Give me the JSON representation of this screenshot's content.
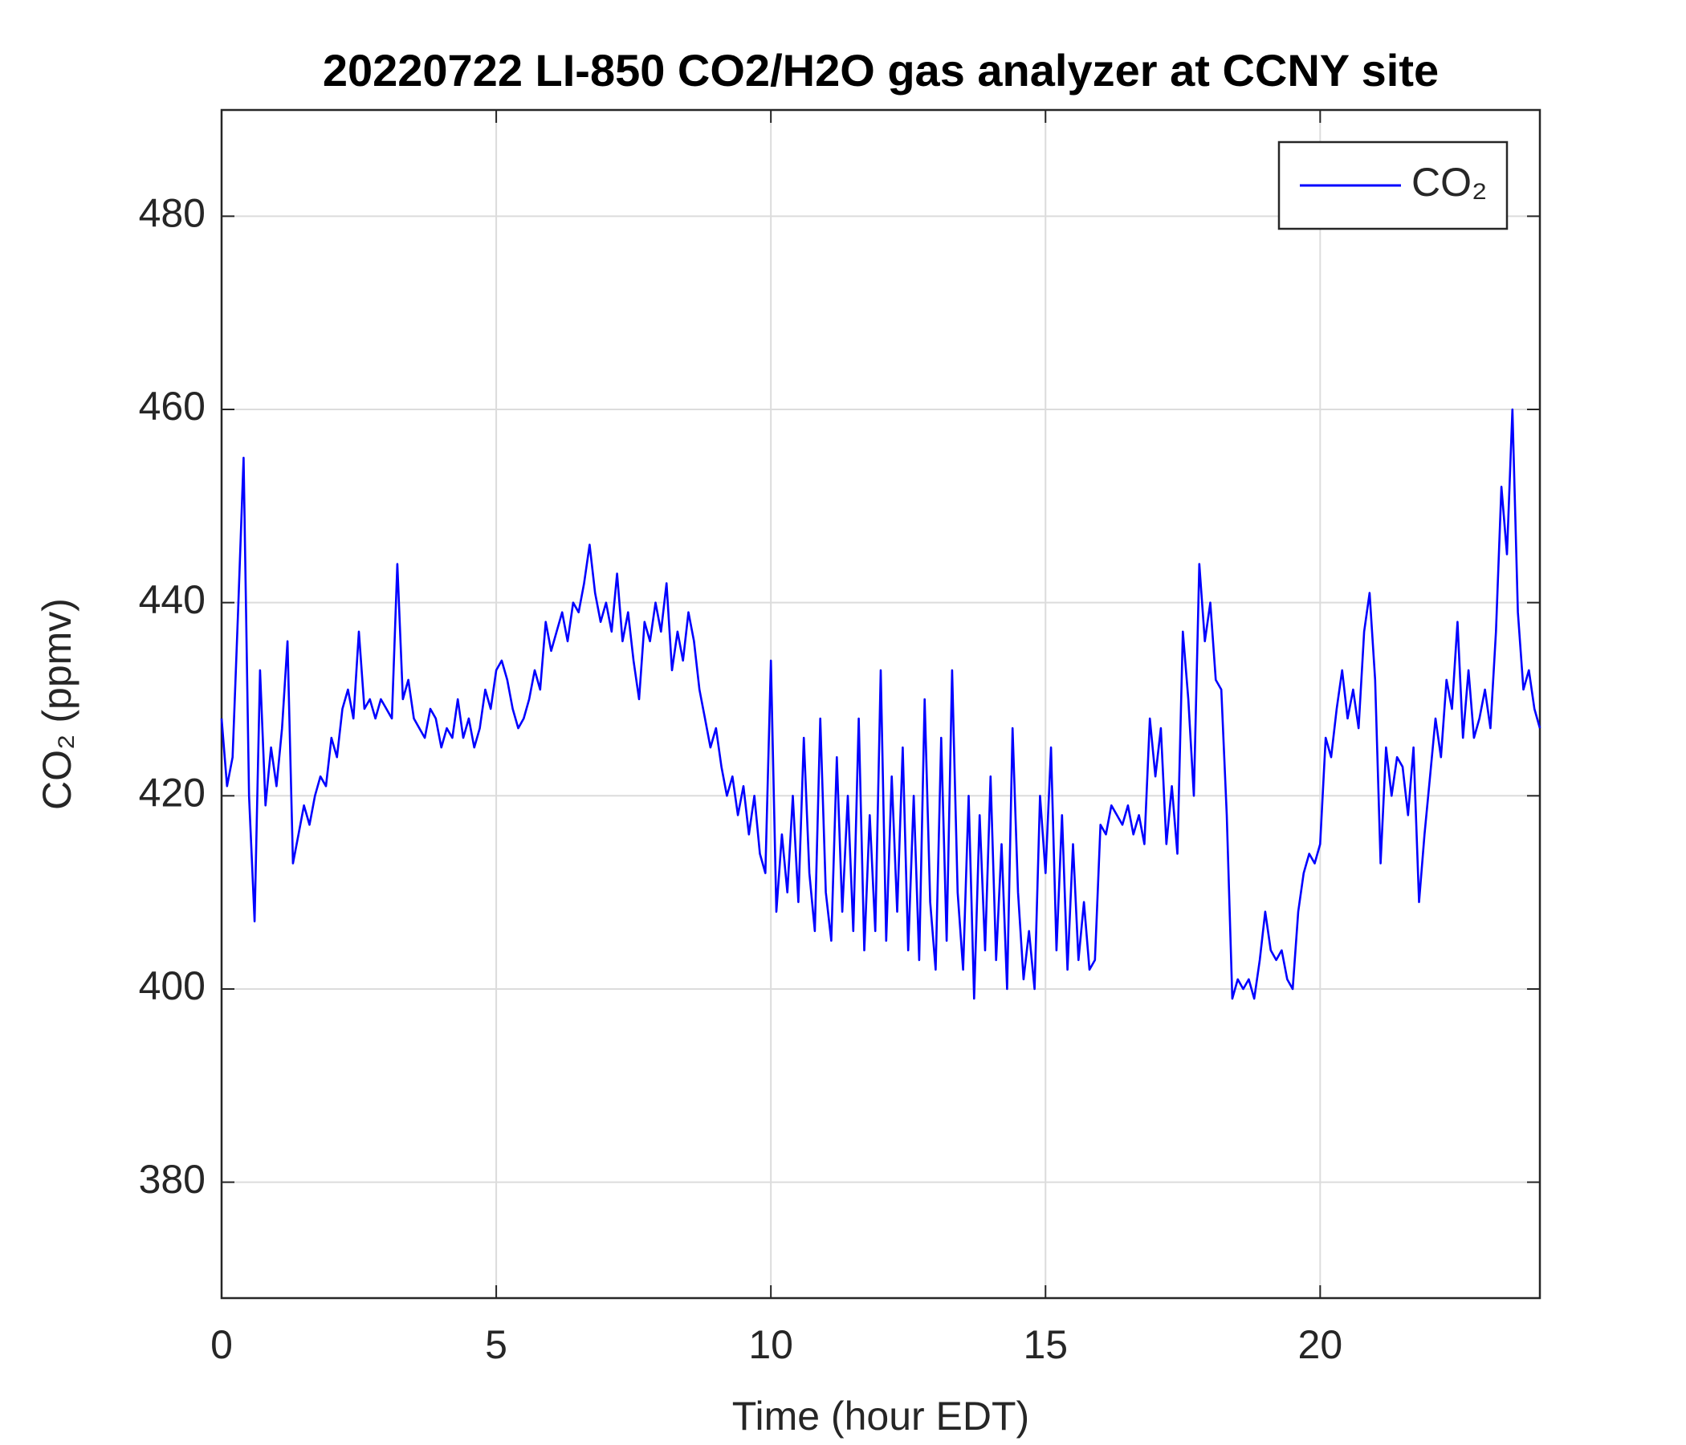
{
  "chart_data": {
    "type": "line",
    "title": "20220722 LI-850 CO2/H2O gas analyzer at CCNY site",
    "xlabel": "Time (hour EDT)",
    "ylabel": "CO₂ (ppmv)",
    "xlim": [
      0,
      24
    ],
    "xticks": [
      0,
      5,
      10,
      15,
      20
    ],
    "ylim": [
      368,
      491
    ],
    "yticks": [
      380,
      400,
      420,
      440,
      460,
      480
    ],
    "grid": true,
    "legend": "upper right",
    "x": [
      0,
      0.1,
      0.2,
      0.3,
      0.4,
      0.5,
      0.6,
      0.7,
      0.8,
      0.9,
      1,
      1.1,
      1.2,
      1.3,
      1.4,
      1.5,
      1.6,
      1.7,
      1.8,
      1.9,
      2,
      2.1,
      2.2,
      2.3,
      2.4,
      2.5,
      2.6,
      2.7,
      2.8,
      2.9,
      3,
      3.1,
      3.2,
      3.3,
      3.4,
      3.5,
      3.6,
      3.7,
      3.8,
      3.9,
      4,
      4.1,
      4.2,
      4.3,
      4.4,
      4.5,
      4.6,
      4.7,
      4.8,
      4.9,
      5,
      5.1,
      5.2,
      5.3,
      5.4,
      5.5,
      5.6,
      5.7,
      5.8,
      5.9,
      6,
      6.1,
      6.2,
      6.3,
      6.4,
      6.5,
      6.6,
      6.7,
      6.8,
      6.9,
      7,
      7.1,
      7.2,
      7.3,
      7.4,
      7.5,
      7.6,
      7.7,
      7.8,
      7.9,
      8,
      8.1,
      8.2,
      8.3,
      8.4,
      8.5,
      8.6,
      8.7,
      8.8,
      8.9,
      9,
      9.1,
      9.2,
      9.3,
      9.4,
      9.5,
      9.6,
      9.7,
      9.8,
      9.9,
      10,
      10.1,
      10.2,
      10.3,
      10.4,
      10.5,
      10.6,
      10.7,
      10.8,
      10.9,
      11,
      11.1,
      11.2,
      11.3,
      11.4,
      11.5,
      11.6,
      11.7,
      11.8,
      11.9,
      12,
      12.1,
      12.2,
      12.3,
      12.4,
      12.5,
      12.6,
      12.7,
      12.8,
      12.9,
      13,
      13.1,
      13.2,
      13.3,
      13.4,
      13.5,
      13.6,
      13.7,
      13.8,
      13.9,
      14,
      14.1,
      14.2,
      14.3,
      14.4,
      14.5,
      14.6,
      14.7,
      14.8,
      14.9,
      15,
      15.1,
      15.2,
      15.3,
      15.4,
      15.5,
      15.6,
      15.7,
      15.8,
      15.9,
      16,
      16.1,
      16.2,
      16.3,
      16.4,
      16.5,
      16.6,
      16.7,
      16.8,
      16.9,
      17,
      17.1,
      17.2,
      17.3,
      17.4,
      17.5,
      17.6,
      17.7,
      17.8,
      17.9,
      18,
      18.1,
      18.2,
      18.3,
      18.4,
      18.5,
      18.6,
      18.7,
      18.8,
      18.9,
      19,
      19.1,
      19.2,
      19.3,
      19.4,
      19.5,
      19.6,
      19.7,
      19.8,
      19.9,
      20,
      20.1,
      20.2,
      20.3,
      20.4,
      20.5,
      20.6,
      20.7,
      20.8,
      20.9,
      21,
      21.1,
      21.2,
      21.3,
      21.4,
      21.5,
      21.6,
      21.7,
      21.8,
      21.9,
      22,
      22.1,
      22.2,
      22.3,
      22.4,
      22.5,
      22.6,
      22.7,
      22.8,
      22.9,
      23,
      23.1,
      23.2,
      23.3,
      23.4,
      23.5,
      23.6,
      23.7,
      23.8,
      23.9,
      24
    ],
    "series": [
      {
        "name": "CO₂",
        "color": "#0000ff",
        "values": [
          428,
          421,
          424,
          439,
          455,
          420,
          407,
          433,
          419,
          425,
          421,
          427,
          436,
          413,
          416,
          419,
          417,
          420,
          422,
          421,
          426,
          424,
          429,
          431,
          428,
          437,
          429,
          430,
          428,
          430,
          429,
          428,
          444,
          430,
          432,
          428,
          427,
          426,
          429,
          428,
          425,
          427,
          426,
          430,
          426,
          428,
          425,
          427,
          431,
          429,
          433,
          434,
          432,
          429,
          427,
          428,
          430,
          433,
          431,
          438,
          435,
          437,
          439,
          436,
          440,
          439,
          442,
          446,
          441,
          438,
          440,
          437,
          443,
          436,
          439,
          434,
          430,
          438,
          436,
          440,
          437,
          442,
          433,
          437,
          434,
          439,
          436,
          431,
          428,
          425,
          427,
          423,
          420,
          422,
          418,
          421,
          416,
          420,
          414,
          412,
          434,
          408,
          416,
          410,
          420,
          409,
          426,
          412,
          406,
          428,
          410,
          405,
          424,
          408,
          420,
          406,
          428,
          404,
          418,
          406,
          433,
          405,
          422,
          408,
          425,
          404,
          420,
          403,
          430,
          409,
          402,
          426,
          405,
          433,
          410,
          402,
          420,
          399,
          418,
          404,
          422,
          403,
          415,
          400,
          427,
          410,
          401,
          406,
          400,
          420,
          412,
          425,
          404,
          418,
          402,
          415,
          403,
          409,
          402,
          403,
          417,
          416,
          419,
          418,
          417,
          419,
          416,
          418,
          415,
          428,
          422,
          427,
          415,
          421,
          414,
          437,
          430,
          420,
          444,
          436,
          440,
          432,
          431,
          418,
          399,
          401,
          400,
          401,
          399,
          403,
          408,
          404,
          403,
          404,
          401,
          400,
          408,
          412,
          414,
          413,
          415,
          426,
          424,
          429,
          433,
          428,
          431,
          427,
          437,
          441,
          432,
          413,
          425,
          420,
          424,
          423,
          418,
          425,
          409,
          416,
          422,
          428,
          424,
          432,
          429,
          438,
          426,
          433,
          426,
          428,
          431,
          427,
          437,
          452,
          445,
          460,
          439,
          431,
          433,
          429,
          427
        ]
      }
    ]
  }
}
